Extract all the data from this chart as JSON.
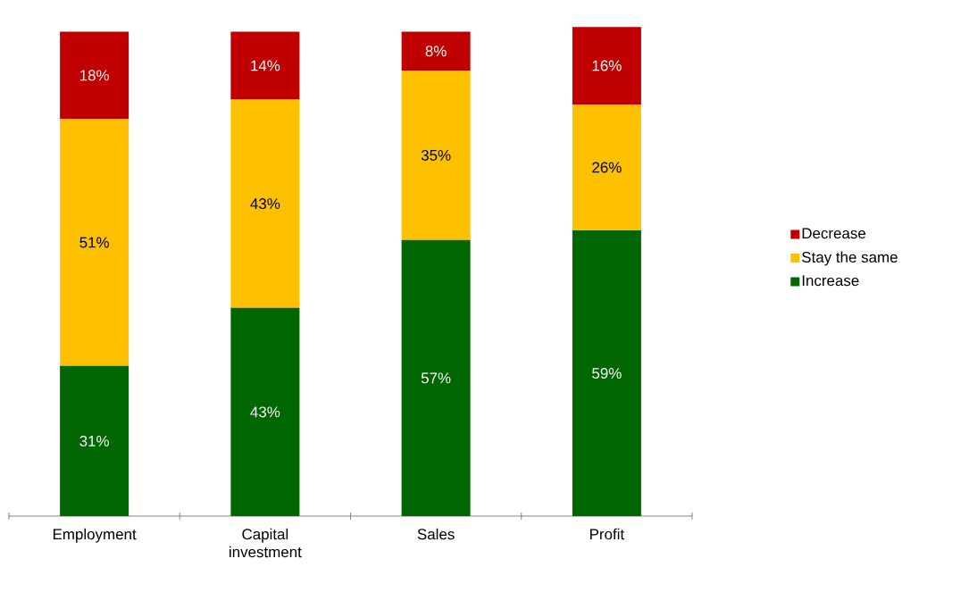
{
  "chart_data": {
    "type": "bar",
    "stacked": true,
    "categories": [
      "Employment",
      "Capital investment",
      "Sales",
      "Profit"
    ],
    "series": [
      {
        "name": "Increase",
        "color": "#006600",
        "values": [
          31,
          43,
          57,
          59
        ],
        "value_labels": [
          "31%",
          "43%",
          "57%",
          "59%"
        ]
      },
      {
        "name": "Stay the same",
        "color": "#ffc000",
        "values": [
          51,
          43,
          35,
          26
        ],
        "value_labels": [
          "51%",
          "43%",
          "35%",
          "26%"
        ]
      },
      {
        "name": "Decrease",
        "color": "#c00000",
        "values": [
          18,
          14,
          8,
          16
        ],
        "value_labels": [
          "18%",
          "14%",
          "8%",
          "16%"
        ]
      }
    ],
    "legend": "right"
  }
}
